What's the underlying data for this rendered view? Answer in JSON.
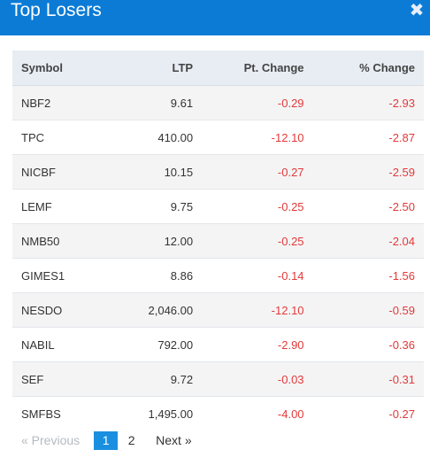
{
  "modal": {
    "title": "Top Losers",
    "close_icon": "close-icon",
    "close_glyph": "✖"
  },
  "table": {
    "headers": {
      "symbol": "Symbol",
      "ltp": "LTP",
      "pt_change": "Pt. Change",
      "pct_change": "% Change"
    },
    "rows": [
      {
        "symbol": "NBF2",
        "ltp": "9.61",
        "pt_change": "-0.29",
        "pct_change": "-2.93"
      },
      {
        "symbol": "TPC",
        "ltp": "410.00",
        "pt_change": "-12.10",
        "pct_change": "-2.87"
      },
      {
        "symbol": "NICBF",
        "ltp": "10.15",
        "pt_change": "-0.27",
        "pct_change": "-2.59"
      },
      {
        "symbol": "LEMF",
        "ltp": "9.75",
        "pt_change": "-0.25",
        "pct_change": "-2.50"
      },
      {
        "symbol": "NMB50",
        "ltp": "12.00",
        "pt_change": "-0.25",
        "pct_change": "-2.04"
      },
      {
        "symbol": "GIMES1",
        "ltp": "8.86",
        "pt_change": "-0.14",
        "pct_change": "-1.56"
      },
      {
        "symbol": "NESDO",
        "ltp": "2,046.00",
        "pt_change": "-12.10",
        "pct_change": "-0.59"
      },
      {
        "symbol": "NABIL",
        "ltp": "792.00",
        "pt_change": "-2.90",
        "pct_change": "-0.36"
      },
      {
        "symbol": "SEF",
        "ltp": "9.72",
        "pt_change": "-0.03",
        "pct_change": "-0.31"
      },
      {
        "symbol": "SMFBS",
        "ltp": "1,495.00",
        "pt_change": "-4.00",
        "pct_change": "-0.27"
      }
    ]
  },
  "pagination": {
    "previous_label": "« Previous",
    "pages": [
      "1",
      "2"
    ],
    "active_page": "1",
    "next_label": "Next »"
  },
  "colors": {
    "header_bg": "#0b7bd6",
    "negative": "#e23a3a",
    "active_page_bg": "#1a8fe0"
  }
}
